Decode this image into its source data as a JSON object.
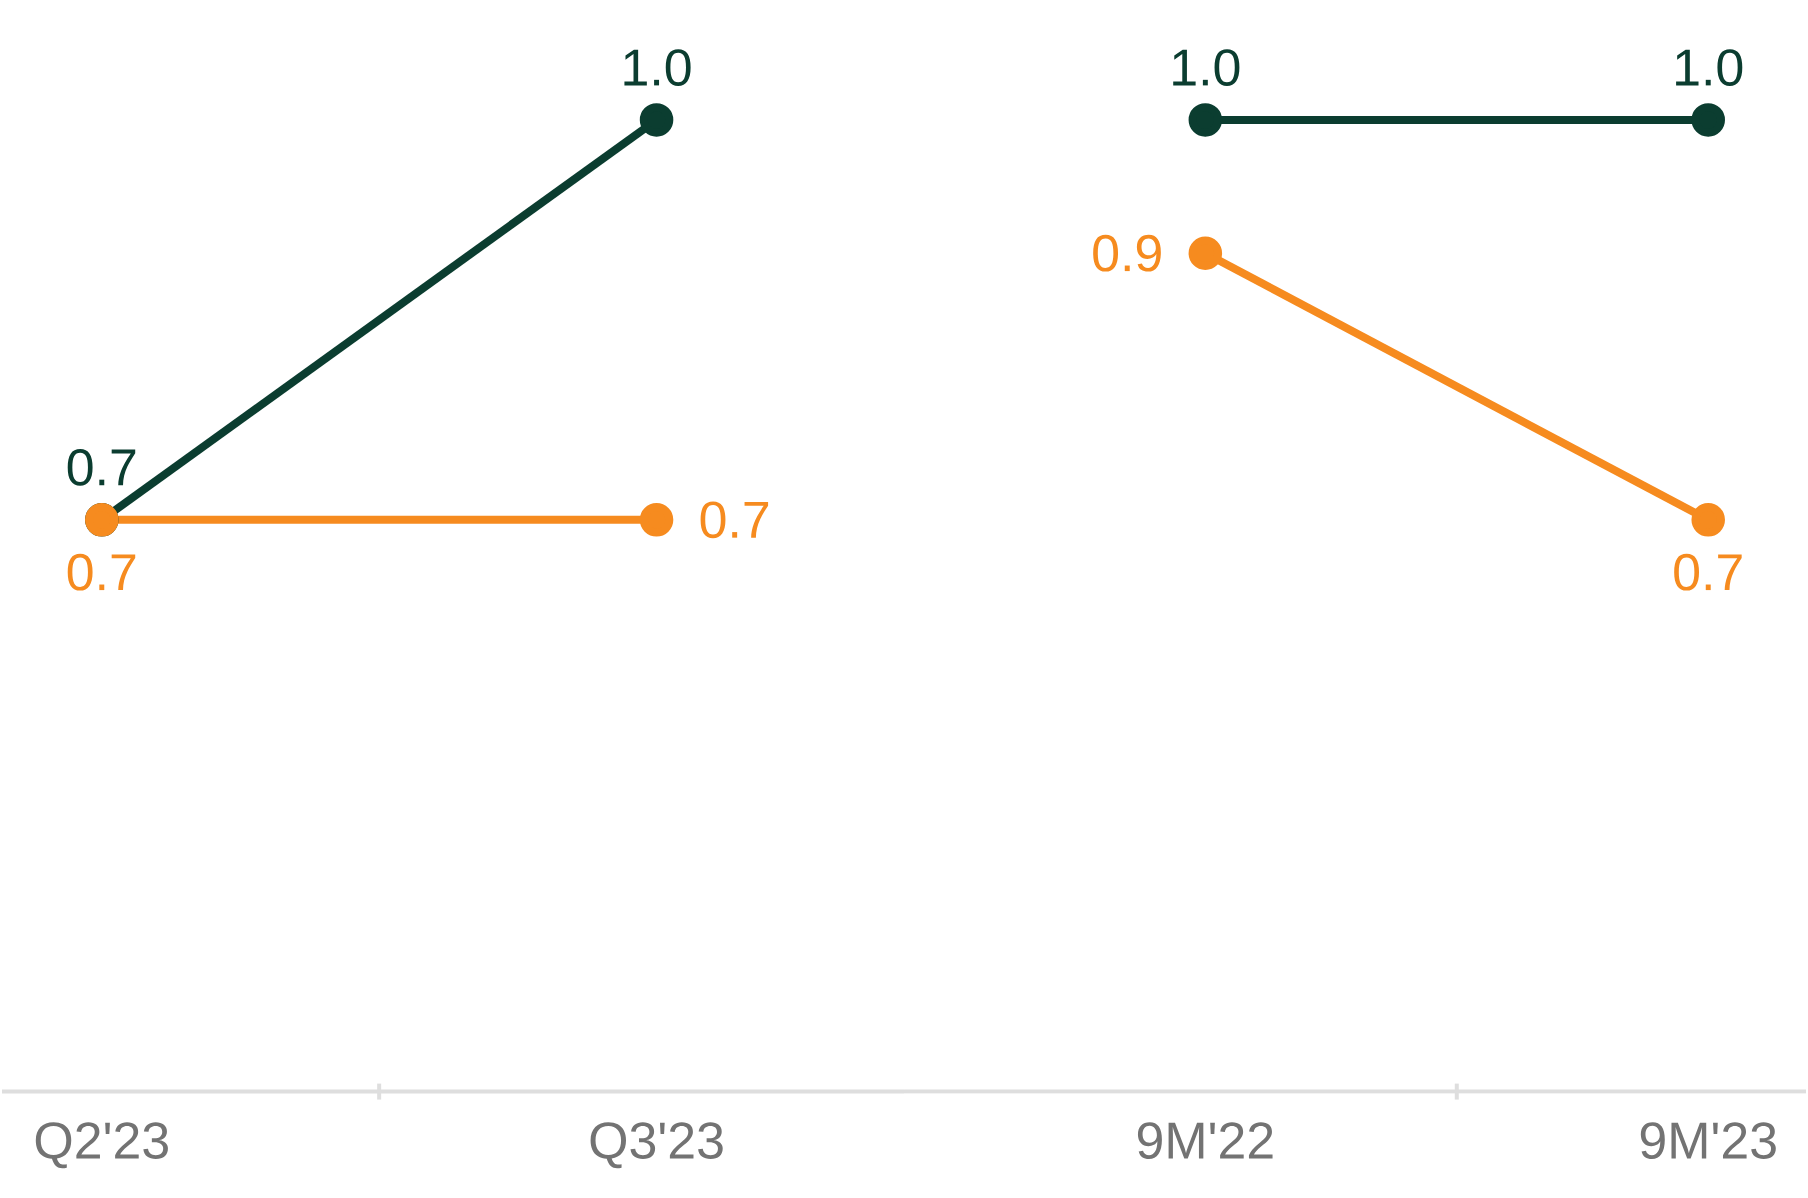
{
  "chart_data": [
    {
      "type": "line",
      "categories": [
        "Q2'23",
        "Q3'23"
      ],
      "series": [
        {
          "color": "#0b3d30",
          "values": [
            0.7,
            1.0
          ],
          "value_labels": [
            "0.7",
            "1.0"
          ]
        },
        {
          "color": "#f68b1f",
          "values": [
            0.7,
            0.7
          ],
          "value_labels": [
            "0.7",
            "0.7"
          ]
        }
      ],
      "tick_labels": "x",
      "marker": "circle"
    },
    {
      "type": "line",
      "categories": [
        "9M'22",
        "9M'23"
      ],
      "series": [
        {
          "color": "#0b3d30",
          "values": [
            1.0,
            1.0
          ],
          "value_labels": [
            "1.0",
            "1.0"
          ]
        },
        {
          "color": "#f68b1f",
          "values": [
            0.9,
            0.7
          ],
          "value_labels": [
            "0.9",
            "0.7"
          ]
        }
      ],
      "tick_labels": "x",
      "marker": "circle"
    }
  ]
}
